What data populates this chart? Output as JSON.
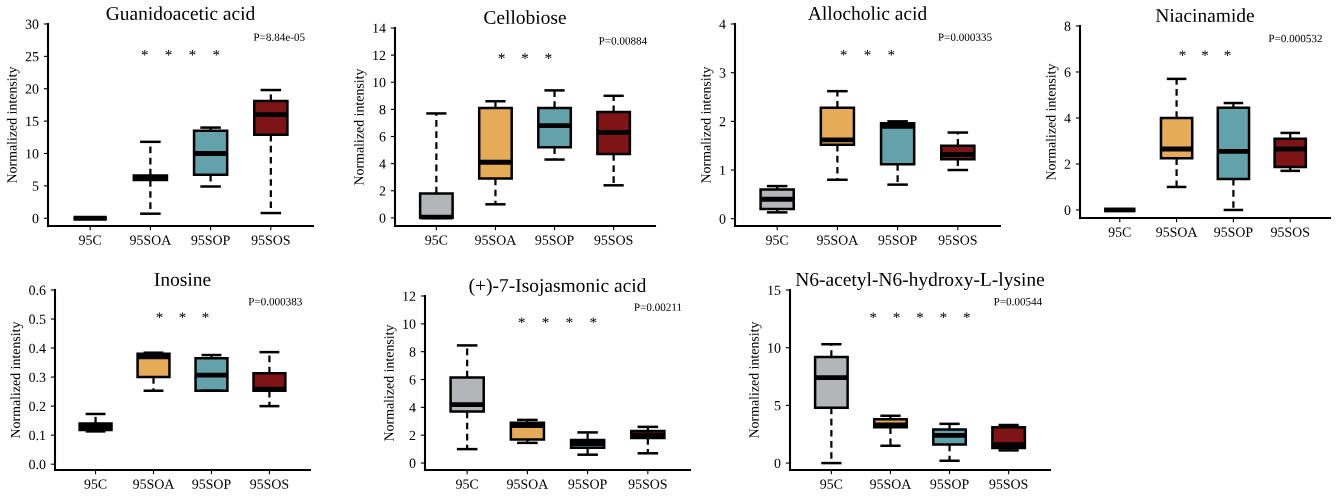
{
  "chart_data": [
    {
      "type": "box",
      "title": "Guanidoacetic acid",
      "ylabel": "Normalized intensity",
      "categories": [
        "95C",
        "95SOA",
        "95SOP",
        "95SOS"
      ],
      "colors": [
        "#000000",
        "#e5ab57",
        "#63a2aa",
        "#7f1416"
      ],
      "ylim": [
        -1.2,
        30
      ],
      "yticks": [
        0,
        5,
        10,
        15,
        20,
        25,
        30
      ],
      "boxes": [
        {
          "low": 0,
          "q1": 0,
          "median": 0,
          "q3": 0,
          "high": 0
        },
        {
          "low": 0.7,
          "q1": 5.9,
          "median": 6.2,
          "q3": 6.6,
          "high": 11.8
        },
        {
          "low": 4.9,
          "q1": 6.7,
          "median": 10.0,
          "q3": 13.5,
          "high": 14.0
        },
        {
          "low": 0.8,
          "q1": 12.9,
          "median": 16.0,
          "q3": 18.1,
          "high": 19.8
        }
      ],
      "annotations": [
        "P=8.84e-05",
        "*",
        "*",
        "*",
        "*"
      ]
    },
    {
      "type": "box",
      "title": "Cellobiose",
      "ylabel": "Normalized intensity",
      "categories": [
        "95C",
        "95SOA",
        "95SOP",
        "95SOS"
      ],
      "colors": [
        "#b4b5b9",
        "#e5ab57",
        "#63a2aa",
        "#7f1416"
      ],
      "ylim": [
        -0.6,
        14
      ],
      "yticks": [
        0,
        2,
        4,
        6,
        8,
        10,
        12,
        14
      ],
      "boxes": [
        {
          "low": 0,
          "q1": 0,
          "median": 0.05,
          "q3": 1.8,
          "high": 7.7
        },
        {
          "low": 1.0,
          "q1": 2.9,
          "median": 4.1,
          "q3": 8.1,
          "high": 8.6
        },
        {
          "low": 4.3,
          "q1": 5.2,
          "median": 6.8,
          "q3": 8.1,
          "high": 9.4
        },
        {
          "low": 2.4,
          "q1": 4.7,
          "median": 6.3,
          "q3": 7.8,
          "high": 9.0
        }
      ],
      "annotations": [
        "P=0.00884",
        "*",
        "*",
        "*"
      ]
    },
    {
      "type": "box",
      "title": "Allocholic acid",
      "ylabel": "Normalized intensity",
      "categories": [
        "95C",
        "95SOA",
        "95SOP",
        "95SOS"
      ],
      "colors": [
        "#b4b5b9",
        "#e5ab57",
        "#63a2aa",
        "#7f1416"
      ],
      "ylim": [
        -0.15,
        4
      ],
      "yticks": [
        0,
        1,
        2,
        3,
        4
      ],
      "boxes": [
        {
          "low": 0.13,
          "q1": 0.2,
          "median": 0.4,
          "q3": 0.6,
          "high": 0.67
        },
        {
          "low": 0.8,
          "q1": 1.52,
          "median": 1.62,
          "q3": 2.28,
          "high": 2.62
        },
        {
          "low": 0.7,
          "q1": 1.12,
          "median": 1.9,
          "q3": 1.96,
          "high": 2.0
        },
        {
          "low": 1.0,
          "q1": 1.22,
          "median": 1.32,
          "q3": 1.5,
          "high": 1.77
        }
      ],
      "annotations": [
        "P=0.000335",
        "*",
        "*",
        "*"
      ]
    },
    {
      "type": "box",
      "title": "Niacinamide",
      "ylabel": "Normalized intensity",
      "categories": [
        "95C",
        "95SOA",
        "95SOP",
        "95SOS"
      ],
      "colors": [
        "#000000",
        "#e5ab57",
        "#63a2aa",
        "#7f1416"
      ],
      "ylim": [
        -0.35,
        8
      ],
      "yticks": [
        0,
        2,
        4,
        6,
        8
      ],
      "boxes": [
        {
          "low": 0,
          "q1": 0,
          "median": 0,
          "q3": 0,
          "high": 0
        },
        {
          "low": 1.0,
          "q1": 2.25,
          "median": 2.65,
          "q3": 4.0,
          "high": 5.7
        },
        {
          "low": 0.0,
          "q1": 1.35,
          "median": 2.55,
          "q3": 4.45,
          "high": 4.65
        },
        {
          "low": 1.7,
          "q1": 1.87,
          "median": 2.65,
          "q3": 3.1,
          "high": 3.35
        }
      ],
      "annotations": [
        "P=0.000532",
        "*",
        "*",
        "*"
      ]
    },
    {
      "type": "box",
      "title": "Inosine",
      "ylabel": "Normalized intensity",
      "categories": [
        "95C",
        "95SOA",
        "95SOP",
        "95SOS"
      ],
      "colors": [
        "#b4b5b9",
        "#e5ab57",
        "#63a2aa",
        "#7f1416"
      ],
      "ylim": [
        -0.02,
        0.6
      ],
      "yticks": [
        {
          "value": 0,
          "label": "0.0"
        },
        0.1,
        0.2,
        0.3,
        0.4,
        0.5,
        0.6
      ],
      "boxes": [
        {
          "low": 0.113,
          "q1": 0.118,
          "median": 0.13,
          "q3": 0.14,
          "high": 0.173
        },
        {
          "low": 0.253,
          "q1": 0.3,
          "median": 0.37,
          "q3": 0.38,
          "high": 0.384
        },
        {
          "low": 0.253,
          "q1": 0.253,
          "median": 0.307,
          "q3": 0.365,
          "high": 0.376
        },
        {
          "low": 0.2,
          "q1": 0.253,
          "median": 0.258,
          "q3": 0.313,
          "high": 0.386
        }
      ],
      "annotations": [
        "P=0.000383",
        "*",
        "*",
        "*"
      ]
    },
    {
      "type": "box",
      "title": "(+)-7-Isojasmonic acid",
      "ylabel": "Normalized intensity",
      "categories": [
        "95C",
        "95SOA",
        "95SOP",
        "95SOS"
      ],
      "colors": [
        "#b4b5b9",
        "#e5ab57",
        "#63a2aa",
        "#7f1416"
      ],
      "ylim": [
        -0.5,
        12
      ],
      "yticks": [
        0,
        2,
        4,
        6,
        8,
        10,
        12
      ],
      "boxes": [
        {
          "low": 1.0,
          "q1": 3.7,
          "median": 4.2,
          "q3": 6.15,
          "high": 8.45
        },
        {
          "low": 1.45,
          "q1": 1.7,
          "median": 2.7,
          "q3": 2.9,
          "high": 3.1
        },
        {
          "low": 0.6,
          "q1": 1.1,
          "median": 1.4,
          "q3": 1.65,
          "high": 2.2
        },
        {
          "low": 0.7,
          "q1": 1.8,
          "median": 2.0,
          "q3": 2.3,
          "high": 2.6
        }
      ],
      "annotations": [
        "P=0.00211",
        "*",
        "*",
        "*",
        "*"
      ]
    },
    {
      "type": "box",
      "title": "N6-acetyl-N6-hydroxy-L-lysine",
      "ylabel": "Normalized intensity",
      "categories": [
        "95C",
        "95SOA",
        "95SOP",
        "95SOS"
      ],
      "colors": [
        "#b4b5b9",
        "#e5ab57",
        "#63a2aa",
        "#7f1416"
      ],
      "ylim": [
        -0.6,
        15
      ],
      "yticks": [
        0,
        5,
        10,
        15
      ],
      "boxes": [
        {
          "low": 0,
          "q1": 4.8,
          "median": 7.4,
          "q3": 9.2,
          "high": 10.3
        },
        {
          "low": 1.5,
          "q1": 3.1,
          "median": 3.3,
          "q3": 3.8,
          "high": 4.1
        },
        {
          "low": 0.2,
          "q1": 1.6,
          "median": 2.4,
          "q3": 2.9,
          "high": 3.4
        },
        {
          "low": 1.1,
          "q1": 1.3,
          "median": 1.6,
          "q3": 3.1,
          "high": 3.3
        }
      ],
      "annotations": [
        "P=0.00544",
        "*",
        "*",
        "*",
        "*",
        "*"
      ]
    }
  ]
}
